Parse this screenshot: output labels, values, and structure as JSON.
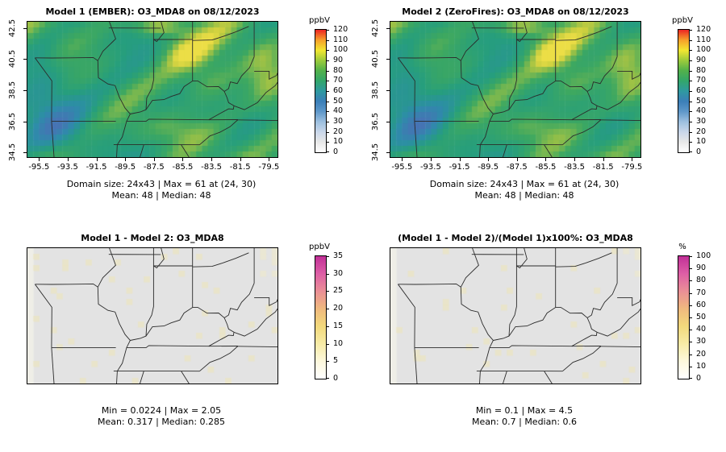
{
  "figure": {
    "background": "#ffffff",
    "boundary_line_color": "#2b2b2b"
  },
  "chart_data": [
    {
      "type": "heatmap",
      "title": "Model 1 (EMBER): O3_MDA8 on 08/12/2023",
      "map_style": "model",
      "grid": {
        "rows": 24,
        "cols": 43
      },
      "x_ticks": [
        -95.5,
        -93.5,
        -91.5,
        -89.5,
        -87.5,
        -85.5,
        -83.5,
        -81.5,
        -79.5
      ],
      "y_ticks": [
        42.5,
        40.5,
        38.5,
        36.5,
        34.5
      ],
      "xlim": [
        -96.3,
        -78.9
      ],
      "ylim": [
        34.2,
        42.9
      ],
      "colorbar": {
        "label": "ppbV",
        "min": 0,
        "max": 120,
        "ticks": [
          0,
          10,
          20,
          30,
          40,
          50,
          60,
          70,
          80,
          90,
          100,
          110,
          120
        ],
        "colors": [
          "#ffffff",
          "#e8e8e8",
          "#c9d7ea",
          "#9cbfdf",
          "#5e97c9",
          "#3b7fb8",
          "#2f9aa0",
          "#33a66a",
          "#52b14b",
          "#9ccb3b",
          "#f2e631",
          "#f6a02a",
          "#ec2424"
        ]
      },
      "stats": {
        "line1": "Domain size: 24x43 | Max = 61 at (24, 30)",
        "line2": "Mean: 48 |  Median: 48"
      },
      "summary": {
        "domain_size": "24x43",
        "max": 61,
        "max_at": [
          24,
          30
        ],
        "mean": 48,
        "median": 48
      }
    },
    {
      "type": "heatmap",
      "title": "Model 2 (ZeroFires): O3_MDA8 on 08/12/2023",
      "map_style": "model",
      "grid": {
        "rows": 24,
        "cols": 43
      },
      "x_ticks": [
        -95.5,
        -93.5,
        -91.5,
        -89.5,
        -87.5,
        -85.5,
        -83.5,
        -81.5,
        -79.5
      ],
      "y_ticks": [
        42.5,
        40.5,
        38.5,
        36.5,
        34.5
      ],
      "xlim": [
        -96.3,
        -78.9
      ],
      "ylim": [
        34.2,
        42.9
      ],
      "colorbar": {
        "label": "ppbV",
        "min": 0,
        "max": 120,
        "ticks": [
          0,
          10,
          20,
          30,
          40,
          50,
          60,
          70,
          80,
          90,
          100,
          110,
          120
        ],
        "colors": [
          "#ffffff",
          "#e8e8e8",
          "#c9d7ea",
          "#9cbfdf",
          "#5e97c9",
          "#3b7fb8",
          "#2f9aa0",
          "#33a66a",
          "#52b14b",
          "#9ccb3b",
          "#f2e631",
          "#f6a02a",
          "#ec2424"
        ]
      },
      "stats": {
        "line1": "Domain size: 24x43 | Max = 61 at (24, 30)",
        "line2": "Mean: 48 |  Median: 48"
      },
      "summary": {
        "domain_size": "24x43",
        "max": 61,
        "max_at": [
          24,
          30
        ],
        "mean": 48,
        "median": 48
      }
    },
    {
      "type": "heatmap",
      "title": "Model 1 - Model 2: O3_MDA8",
      "map_style": "diff",
      "grid": {
        "rows": 24,
        "cols": 43
      },
      "x_ticks": [],
      "y_ticks": [],
      "xlim": [
        -96.3,
        -78.9
      ],
      "ylim": [
        34.2,
        42.9
      ],
      "colorbar": {
        "label": "ppbV",
        "min": 0,
        "max": 35,
        "ticks": [
          0,
          5,
          10,
          15,
          20,
          25,
          30,
          35
        ],
        "colors": [
          "#ffffff",
          "#fdf8dc",
          "#f7eba6",
          "#f2d97c",
          "#efb97e",
          "#ea8f96",
          "#dd5fa6",
          "#c12f97"
        ]
      },
      "stats": {
        "line1": "Min = 0.0224 | Max = 2.05",
        "line2": "Mean: 0.317 |  Median: 0.285"
      },
      "summary": {
        "min": 0.0224,
        "max": 2.05,
        "mean": 0.317,
        "median": 0.285
      }
    },
    {
      "type": "heatmap",
      "title": "(Model 1 - Model 2)/(Model 1)x100%: O3_MDA8",
      "map_style": "diff",
      "grid": {
        "rows": 24,
        "cols": 43
      },
      "x_ticks": [],
      "y_ticks": [],
      "xlim": [
        -96.3,
        -78.9
      ],
      "ylim": [
        34.2,
        42.9
      ],
      "colorbar": {
        "label": "%",
        "min": 0,
        "max": 100,
        "ticks": [
          0,
          10,
          20,
          30,
          40,
          50,
          60,
          70,
          80,
          90,
          100
        ],
        "colors": [
          "#ffffff",
          "#fdf8dc",
          "#f7eba6",
          "#f2d97c",
          "#efb97e",
          "#ea8f96",
          "#dd5fa6",
          "#c12f97"
        ]
      },
      "stats": {
        "line1": "Min = 0.1 | Max = 4.5",
        "line2": "Mean: 0.7 |  Median: 0.6"
      },
      "summary": {
        "min": 0.1,
        "max": 4.5,
        "mean": 0.7,
        "median": 0.6
      }
    }
  ]
}
